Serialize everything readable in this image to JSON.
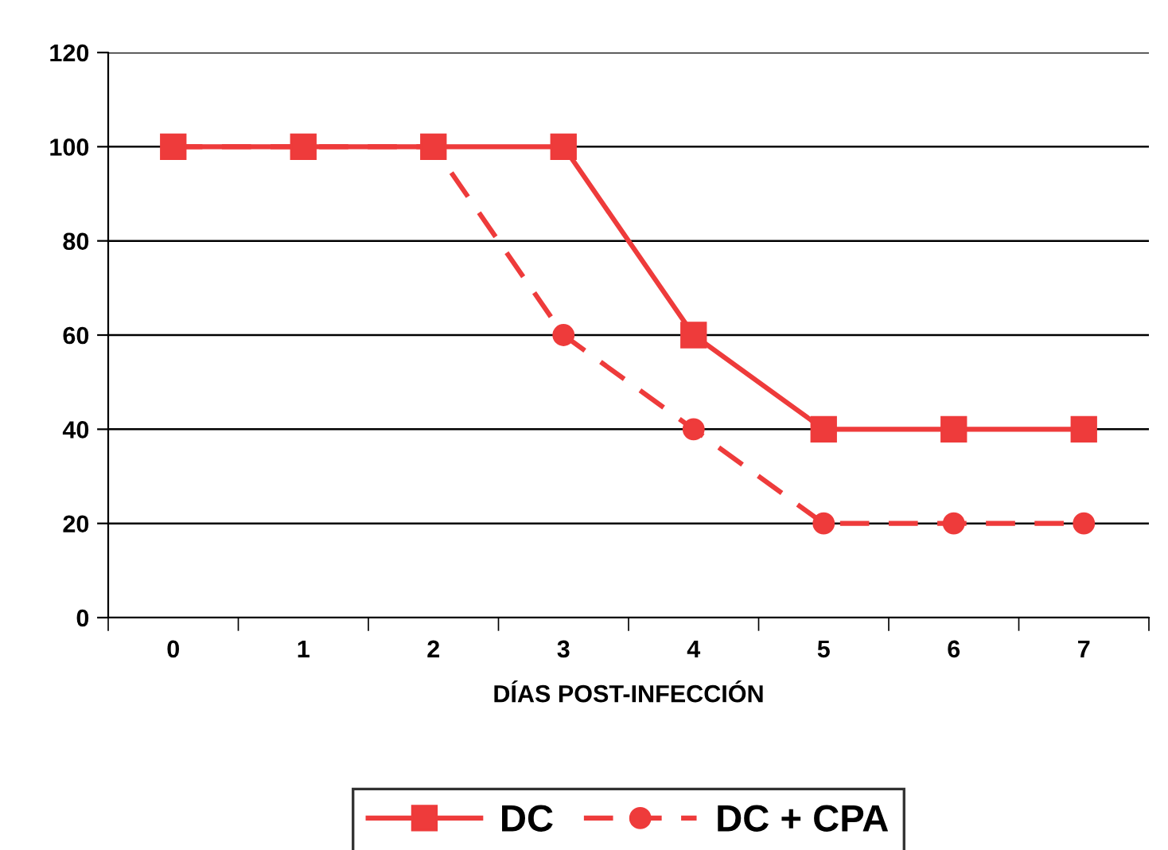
{
  "chart_data": {
    "type": "line",
    "xlabel": "DÍAS POST-INFECCIÓN",
    "categories": [
      "0",
      "1",
      "2",
      "3",
      "4",
      "5",
      "6",
      "7"
    ],
    "series": [
      {
        "name": "DC",
        "color": "#ee3b3b",
        "values": [
          100,
          100,
          100,
          100,
          60,
          40,
          40,
          40
        ],
        "marker": "square",
        "line_style": "solid"
      },
      {
        "name": "DC + CPA",
        "color": "#ee3b3b",
        "values": [
          100,
          100,
          100,
          60,
          40,
          20,
          20,
          20
        ],
        "marker": "circle",
        "line_style": "dashed"
      }
    ],
    "ylim": [
      0,
      120
    ],
    "yticks": [
      0,
      20,
      40,
      60,
      80,
      100,
      120
    ],
    "grid": "y",
    "legend": "bottom"
  }
}
